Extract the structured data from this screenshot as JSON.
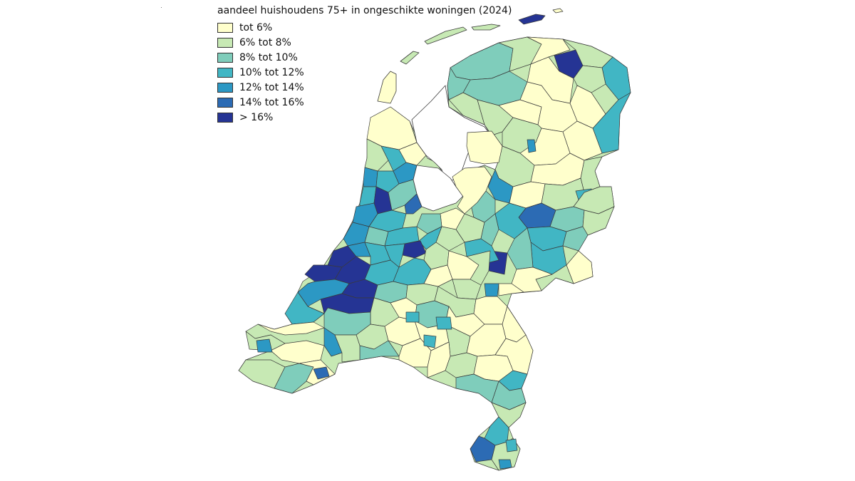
{
  "map": {
    "title": "aandeel huishoudens 75+ in ongeschikte woningen (2024)",
    "legend": [
      {
        "label": "tot 6%",
        "color": "#ffffcc"
      },
      {
        "label": "6% tot 8%",
        "color": "#c7e9b4"
      },
      {
        "label": "8% tot 10%",
        "color": "#7fcdbb"
      },
      {
        "label": "10% tot 12%",
        "color": "#41b6c4"
      },
      {
        "label": "12% tot 14%",
        "color": "#2c98c4"
      },
      {
        "label": "14% tot 16%",
        "color": "#2c6bb4"
      },
      {
        "label": "> 16%",
        "color": "#253494"
      }
    ],
    "border_color": "#3a3a3a",
    "background": "#ffffff"
  }
}
